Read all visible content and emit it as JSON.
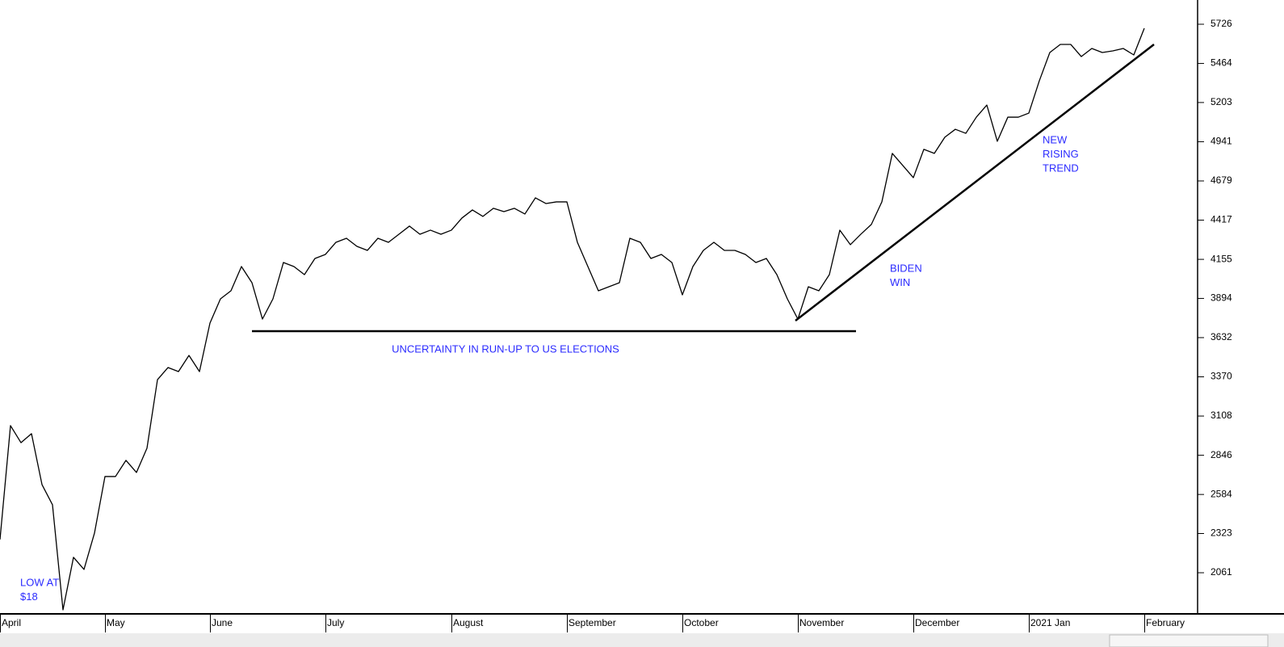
{
  "chart_data": {
    "type": "line",
    "color": "#000000",
    "categories": [
      "April",
      null,
      null,
      null,
      null,
      null,
      null,
      null,
      null,
      null,
      "May",
      null,
      null,
      null,
      null,
      null,
      null,
      null,
      null,
      null,
      "June",
      null,
      null,
      null,
      null,
      null,
      null,
      null,
      null,
      null,
      null,
      "July",
      null,
      null,
      null,
      null,
      null,
      null,
      null,
      null,
      null,
      null,
      null,
      "August",
      null,
      null,
      null,
      null,
      null,
      null,
      null,
      null,
      null,
      null,
      "September",
      null,
      null,
      null,
      null,
      null,
      null,
      null,
      null,
      null,
      null,
      "October",
      null,
      null,
      null,
      null,
      null,
      null,
      null,
      null,
      null,
      null,
      "November",
      null,
      null,
      null,
      null,
      null,
      null,
      null,
      null,
      null,
      null,
      "December",
      null,
      null,
      null,
      null,
      null,
      null,
      null,
      null,
      null,
      null,
      "2021 Jan",
      null,
      null,
      null,
      null,
      null,
      null,
      null,
      null,
      null,
      null,
      "February"
    ],
    "values": [
      2283,
      3044,
      2930,
      2990,
      2650,
      2515,
      1813,
      2164,
      2083,
      2326,
      2704,
      2704,
      2812,
      2731,
      2893,
      3351,
      3432,
      3405,
      3513,
      3405,
      3729,
      3891,
      3945,
      4107,
      3999,
      3756,
      3891,
      4134,
      4107,
      4053,
      4161,
      4188,
      4269,
      4296,
      4242,
      4215,
      4296,
      4269,
      4323,
      4377,
      4323,
      4350,
      4323,
      4350,
      4431,
      4485,
      4442,
      4496,
      4474,
      4496,
      4458,
      4566,
      4528,
      4539,
      4539,
      4269,
      4107,
      3945,
      3972,
      3999,
      4296,
      4269,
      4161,
      4188,
      4134,
      3918,
      4107,
      4215,
      4269,
      4215,
      4215,
      4188,
      4134,
      4161,
      4053,
      3891,
      3756,
      3972,
      3945,
      4053,
      4350,
      4253,
      4323,
      4388,
      4539,
      4863,
      4782,
      4701,
      4890,
      4863,
      4971,
      5024,
      4997,
      5105,
      5186,
      4944,
      5105,
      5105,
      5132,
      5348,
      5537,
      5591,
      5591,
      5510,
      5564,
      5537,
      5548,
      5564,
      5521,
      5699
    ],
    "ylim": [
      1786,
      5888
    ],
    "yticks": [
      2061,
      2323,
      2584,
      2846,
      3108,
      3370,
      3632,
      3894,
      4155,
      4417,
      4679,
      4941,
      5203,
      5464,
      5726
    ],
    "annotations": [
      {
        "lines": [
          "LOW AT",
          "$18"
        ]
      },
      {
        "lines": [
          "UNCERTAINTY IN RUN-UP TO US ELECTIONS"
        ]
      },
      {
        "lines": [
          "BIDEN",
          "WIN"
        ]
      },
      {
        "lines": [
          "NEW",
          "RISING",
          "TREND"
        ]
      }
    ]
  }
}
